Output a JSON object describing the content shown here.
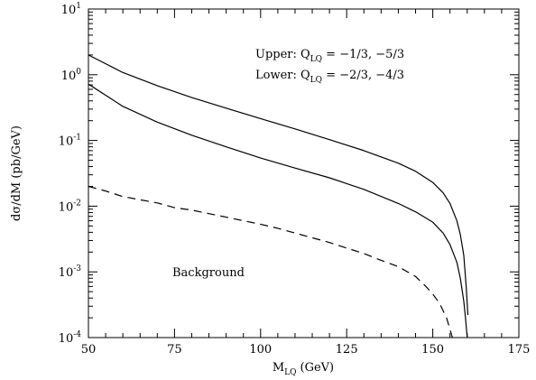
{
  "chart_data": {
    "type": "line",
    "xlabel": "M",
    "xlabel_sub": "LQ",
    "xlabel_unit": "(GeV)",
    "ylabel": "dσ/dM (pb/GeV)",
    "xlim": [
      50,
      175
    ],
    "ylim": [
      0.0001,
      10
    ],
    "yscale": "log",
    "x_ticks": [
      50,
      75,
      100,
      125,
      150,
      175
    ],
    "y_ticks": [
      {
        "value": 0.0001,
        "base": "10",
        "exp": "-4"
      },
      {
        "value": 0.001,
        "base": "10",
        "exp": "-3"
      },
      {
        "value": 0.01,
        "base": "10",
        "exp": "-2"
      },
      {
        "value": 0.1,
        "base": "10",
        "exp": "-1"
      },
      {
        "value": 1,
        "base": "10",
        "exp": "0"
      },
      {
        "value": 10,
        "base": "10",
        "exp": "1"
      }
    ],
    "grid": false,
    "annotations": {
      "upper": {
        "prefix": "Upper: Q",
        "sub": "LQ",
        "suffix": " = −1/3, −5/3"
      },
      "lower": {
        "prefix": "Lower: Q",
        "sub": "LQ",
        "suffix": " = −2/3, −4/3"
      },
      "background": "Background"
    },
    "series": [
      {
        "style": "solid",
        "x": [
          50,
          60,
          70,
          80,
          90,
          100,
          110,
          120,
          130,
          140,
          145,
          150,
          153,
          155,
          157,
          158,
          159,
          159.7,
          160.2
        ],
        "y": [
          2.0,
          1.08,
          0.68,
          0.45,
          0.31,
          0.215,
          0.15,
          0.103,
          0.07,
          0.045,
          0.034,
          0.023,
          0.016,
          0.011,
          0.006,
          0.0037,
          0.0018,
          0.0006,
          0.00022
        ]
      },
      {
        "style": "solid",
        "x": [
          50,
          60,
          70,
          80,
          90,
          100,
          110,
          120,
          130,
          140,
          145,
          150,
          153,
          155,
          157,
          158,
          159,
          159.5,
          160
        ],
        "y": [
          0.72,
          0.33,
          0.19,
          0.12,
          0.08,
          0.054,
          0.038,
          0.027,
          0.018,
          0.011,
          0.0082,
          0.0057,
          0.0039,
          0.0026,
          0.0014,
          0.0008,
          0.00036,
          0.0002,
          0.0001
        ]
      },
      {
        "style": "dashed",
        "x": [
          50,
          55,
          60,
          65,
          70,
          75,
          80,
          85,
          90,
          95,
          100,
          105,
          110,
          115,
          120,
          125,
          130,
          135,
          140,
          145,
          148,
          150,
          152,
          154,
          155.7
        ],
        "y": [
          0.02,
          0.017,
          0.014,
          0.0125,
          0.0112,
          0.0095,
          0.0087,
          0.0077,
          0.0068,
          0.006,
          0.0053,
          0.0046,
          0.0039,
          0.0033,
          0.0028,
          0.0023,
          0.0019,
          0.0015,
          0.0012,
          0.00085,
          0.0006,
          0.00046,
          0.00033,
          0.0002,
          0.0001
        ]
      }
    ]
  }
}
